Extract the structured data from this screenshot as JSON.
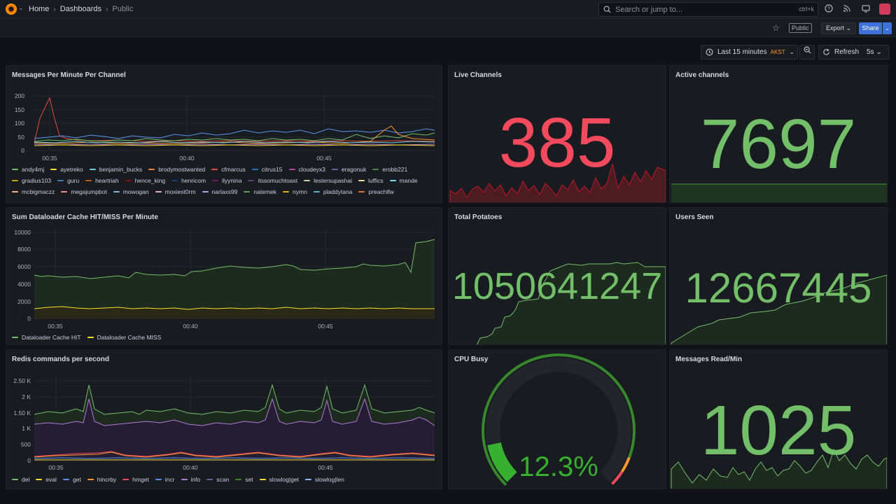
{
  "breadcrumb": [
    "Home",
    "Dashboards",
    "Public"
  ],
  "search": {
    "placeholder": "Search or jump to...",
    "shortcut": "ctrl+k"
  },
  "toolbar": {
    "public_label": "Public",
    "export_label": "Export",
    "share_label": "Share"
  },
  "controls": {
    "time_range": "Last 15 minutes",
    "timezone": "AKST",
    "refresh_label": "Refresh",
    "refresh_interval": "5s"
  },
  "time_ticks": [
    "00:35",
    "00:40",
    "00:45"
  ],
  "colors": {
    "green": "#73bf69",
    "red": "#f2495c",
    "yellow": "#fade2a",
    "blue": "#5794f2",
    "orange": "#ff9830",
    "purple": "#b877d9"
  },
  "panels": {
    "messages": {
      "title": "Messages Per Minute Per Channel",
      "y_ticks": [
        "200",
        "150",
        "100",
        "50",
        "0"
      ],
      "legend": [
        {
          "name": "andy4mj",
          "color": "#73bf69"
        },
        {
          "name": "ayetreko",
          "color": "#fade2a"
        },
        {
          "name": "benjamin_bucks",
          "color": "#6ed0e0"
        },
        {
          "name": "brodymostwanted",
          "color": "#ef843c"
        },
        {
          "name": "cfmarcus",
          "color": "#e24d42"
        },
        {
          "name": "citrus15",
          "color": "#1f78c1"
        },
        {
          "name": "cloudeyx3",
          "color": "#ba43a9"
        },
        {
          "name": "eragonuk",
          "color": "#705da0"
        },
        {
          "name": "erobb221",
          "color": "#508642"
        },
        {
          "name": "gradius103",
          "color": "#cca300"
        },
        {
          "name": "guru",
          "color": "#447ebc"
        },
        {
          "name": "heartriah",
          "color": "#c15c17"
        },
        {
          "name": "hence_king",
          "color": "#890f02"
        },
        {
          "name": "henricom",
          "color": "#0a437c"
        },
        {
          "name": "llyynina",
          "color": "#6d1f62"
        },
        {
          "name": "itssomuchtoast",
          "color": "#584477"
        },
        {
          "name": "lestersupashai",
          "color": "#b7dbab"
        },
        {
          "name": "luffics",
          "color": "#f4d598"
        },
        {
          "name": "mande",
          "color": "#70dbed"
        },
        {
          "name": "mcbigmaczz",
          "color": "#f9ba8f"
        },
        {
          "name": "megajumpbot",
          "color": "#f29191"
        },
        {
          "name": "mowogan",
          "color": "#82b5d8"
        },
        {
          "name": "moxiest0rm",
          "color": "#e5a8e2"
        },
        {
          "name": "narlaxs99",
          "color": "#aea2e0"
        },
        {
          "name": "natemek",
          "color": "#629e51"
        },
        {
          "name": "nymn",
          "color": "#e5ac0e"
        },
        {
          "name": "pladdytana",
          "color": "#64b0c8"
        },
        {
          "name": "preachlfw",
          "color": "#e0752d"
        }
      ]
    },
    "live": {
      "title": "Live Channels",
      "value": "385"
    },
    "active": {
      "title": "Active channels",
      "value": "7697"
    },
    "dataloader": {
      "title": "Sum Dataloader Cache HIT/MISS Per Minute",
      "y_ticks": [
        "10000",
        "8000",
        "6000",
        "4000",
        "2000",
        "0"
      ],
      "legend": [
        {
          "name": "Dataloader Cache HIT",
          "color": "#73bf69"
        },
        {
          "name": "Dataloader Cache MISS",
          "color": "#fade2a"
        }
      ]
    },
    "potatoes": {
      "title": "Total Potatoes",
      "value": "1050641247"
    },
    "users": {
      "title": "Users Seen",
      "value": "12667445"
    },
    "redis": {
      "title": "Redis commands per second",
      "y_ticks": [
        "2.50 K",
        "2 K",
        "1.50 K",
        "1 K",
        "500",
        "0"
      ],
      "legend": [
        {
          "name": "del",
          "color": "#73bf69"
        },
        {
          "name": "eval",
          "color": "#fade2a"
        },
        {
          "name": "get",
          "color": "#5794f2"
        },
        {
          "name": "hincrby",
          "color": "#ff9830"
        },
        {
          "name": "hmget",
          "color": "#f2495c"
        },
        {
          "name": "incr",
          "color": "#5794f2"
        },
        {
          "name": "info",
          "color": "#b877d9"
        },
        {
          "name": "scan",
          "color": "#705da0"
        },
        {
          "name": "set",
          "color": "#37872d"
        },
        {
          "name": "slowlog|get",
          "color": "#fade2a"
        },
        {
          "name": "slowlog|len",
          "color": "#8ab8ff"
        }
      ]
    },
    "cpu": {
      "title": "CPU Busy",
      "value": "12.3%",
      "percent": 12.3
    },
    "msgread": {
      "title": "Messages Read/Min",
      "value": "1025"
    }
  }
}
